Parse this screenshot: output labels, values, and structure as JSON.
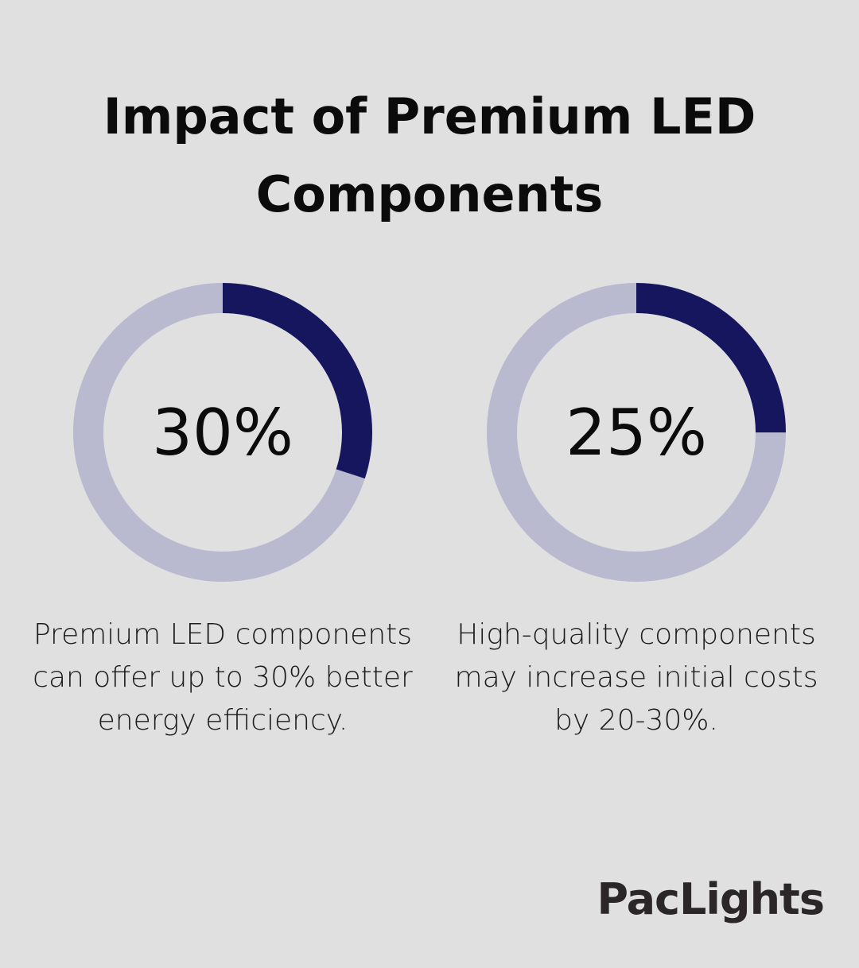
{
  "title": "Impact of Premium LED Components",
  "colors": {
    "filled": "#16165e",
    "track": "#b9b9cf",
    "background": "#dfe0df"
  },
  "chart_data": [
    {
      "type": "pie",
      "variant": "donut",
      "value": 30,
      "max": 100,
      "label": "30%",
      "caption": "Premium LED components can offer up to 30% better energy efficiency."
    },
    {
      "type": "pie",
      "variant": "donut",
      "value": 25,
      "max": 100,
      "label": "25%",
      "caption": "High-quality components may increase initial costs by 20-30%."
    }
  ],
  "logo": "PacLights"
}
